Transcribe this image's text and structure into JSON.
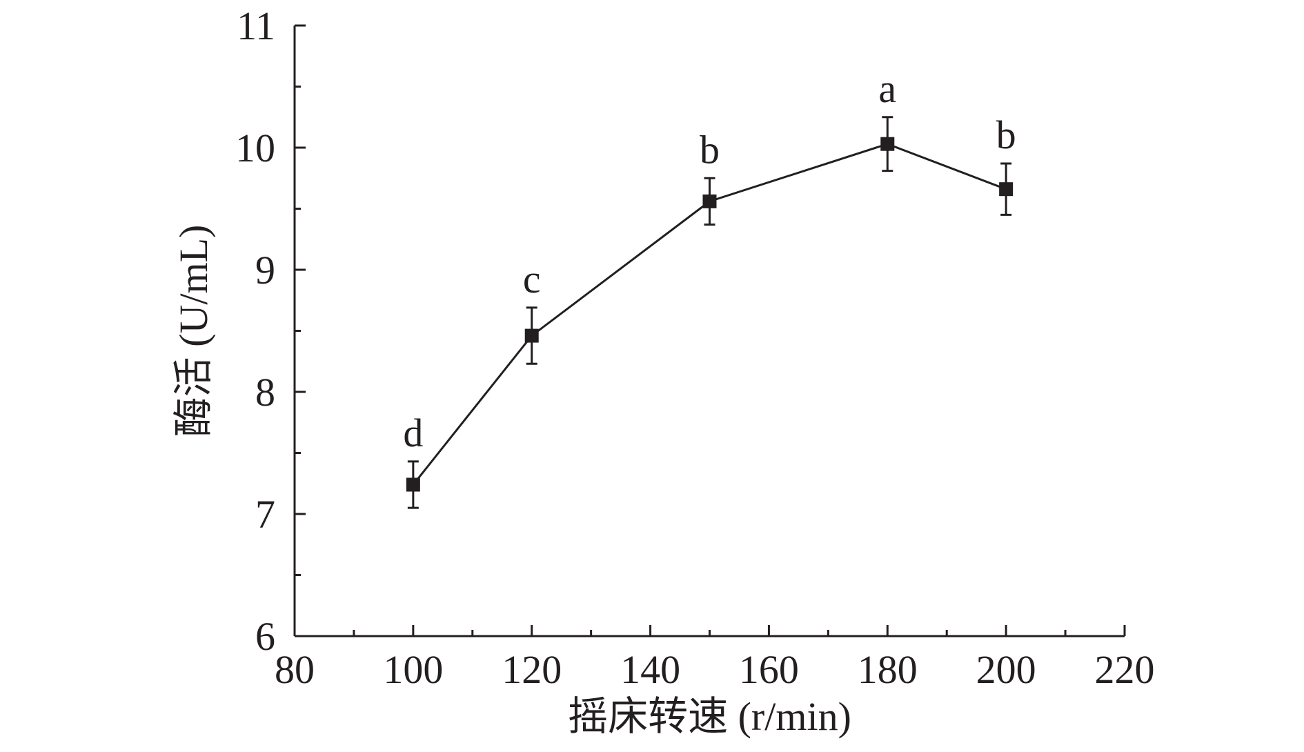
{
  "chart_data": {
    "type": "line",
    "xlabel": "摇床转速 (r/min)",
    "ylabel": "酶活 (U/mL)",
    "xlim": [
      80,
      220
    ],
    "ylim": [
      6,
      11
    ],
    "x_ticks": [
      80,
      100,
      120,
      140,
      160,
      180,
      200,
      220
    ],
    "y_ticks": [
      6,
      7,
      8,
      9,
      10,
      11
    ],
    "x_tick_labels": [
      "80",
      "100",
      "120",
      "140",
      "160",
      "180",
      "200",
      "220"
    ],
    "y_tick_labels": [
      "6",
      "7",
      "8",
      "9",
      "10",
      "11"
    ],
    "x_minor_step": 10,
    "y_minor_step": 0.5,
    "series": [
      {
        "x": [
          100,
          120,
          150,
          180,
          200
        ],
        "values": [
          7.24,
          8.46,
          9.56,
          10.03,
          9.66
        ],
        "error": [
          0.19,
          0.23,
          0.19,
          0.22,
          0.21
        ],
        "labels": [
          "d",
          "c",
          "b",
          "a",
          "b"
        ],
        "color": "#231f20",
        "marker": "square"
      }
    ],
    "grid": false,
    "legend": "none"
  }
}
